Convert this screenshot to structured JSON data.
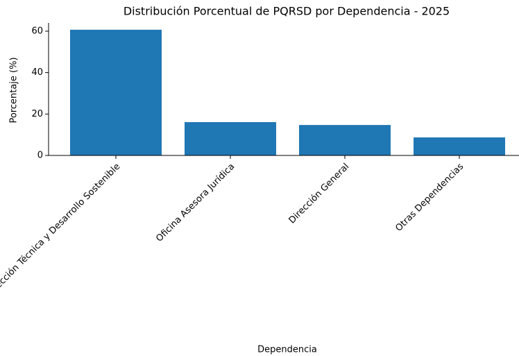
{
  "chart_data": {
    "type": "bar",
    "title": "Distribución Porcentual de PQRSD por Dependencia - 2025",
    "x_label": "Dependencia",
    "y_label": "Porcentaje (%)",
    "categories": [
      "Subdirección Técnica y Desarrollo Sostenible",
      "Oficina Asesora Jurídica",
      "Dirección General",
      "Otras Dependencias"
    ],
    "values": [
      60.7,
      16.1,
      14.7,
      8.7
    ],
    "color": "#1f77b4",
    "ylim": [
      0,
      64
    ],
    "yticks": [
      0,
      20,
      40,
      60
    ]
  }
}
